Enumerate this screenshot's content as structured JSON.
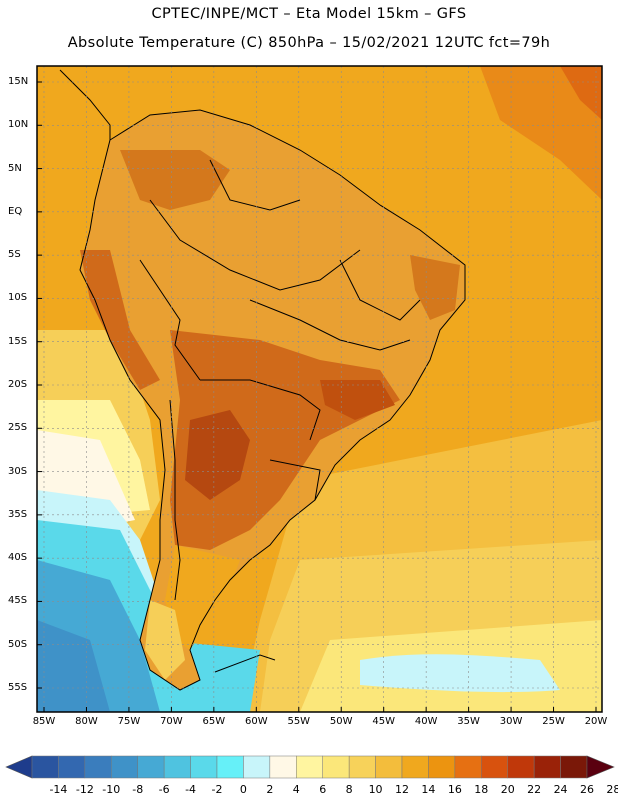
{
  "header": {
    "line1": "CPTEC/INPE/MCT –  Eta Model 15km – GFS",
    "line2": "Absolute Temperature (C) 850hPa – 15/02/2021 12UTC fct=79h"
  },
  "map": {
    "lat_labels": [
      "15N",
      "10N",
      "5N",
      "EQ",
      "5S",
      "10S",
      "15S",
      "20S",
      "25S",
      "30S",
      "35S",
      "40S",
      "45S",
      "50S",
      "55S"
    ],
    "lon_labels": [
      "85W",
      "80W",
      "75W",
      "70W",
      "65W",
      "60W",
      "55W",
      "50W",
      "45W",
      "40W",
      "35W",
      "30W",
      "25W",
      "20W"
    ],
    "region": "South America"
  },
  "colorbar": {
    "labels": [
      "-14",
      "-12",
      "-10",
      "-8",
      "-6",
      "-4",
      "-2",
      "0",
      "2",
      "4",
      "6",
      "8",
      "10",
      "12",
      "14",
      "16",
      "18",
      "20",
      "22",
      "24",
      "26",
      "28"
    ],
    "colors": [
      "#1e3c8c",
      "#2a55a0",
      "#3368b0",
      "#3a7dbd",
      "#3f92c8",
      "#46a9d4",
      "#4fc3e0",
      "#5ad9ea",
      "#66f0f8",
      "#c8f5fa",
      "#fff8e6",
      "#fff5a0",
      "#fbe77a",
      "#f7d25a",
      "#f3bd3c",
      "#f0a81e",
      "#ec9410",
      "#e67012",
      "#d8520e",
      "#c0380a",
      "#9a2208",
      "#7a1808",
      "#5a0010"
    ],
    "unit": "C"
  },
  "style": {
    "land_warm": "#e9a032",
    "land_hot": "#c95a14",
    "ocean_warm": "#f0a81e",
    "ocean_mild": "#f6cf58",
    "ocean_cold": "#5ad9ea",
    "ocean_coldest": "#2a55a0"
  }
}
